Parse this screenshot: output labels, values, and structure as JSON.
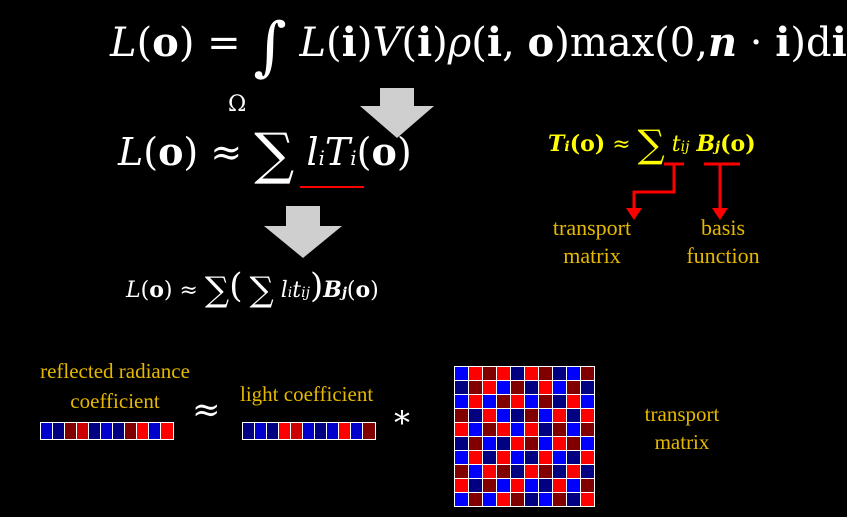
{
  "equations": {
    "main": "L(o) = ∫ L(i)V(i)ρ(i, o)max(0,n · i)di",
    "omega": "Ω",
    "approx1": "L(o) ≈ ∑ lᵢTᵢ(o)",
    "approx2": "L(o) ≈ ∑ ( ∑ lᵢtᵢⱼ ) Bⱼ(o)",
    "transport_eq": "Tᵢ(o) ≈ ∑ tᵢⱼ Bⱼ(o)"
  },
  "labels": {
    "transport_matrix_top": "transport matrix",
    "basis_function": "basis function",
    "reflected_radiance": "reflected radiance coefficient",
    "light_coefficient": "light coefficient",
    "transport_matrix_bottom": "transport matrix",
    "approx_symbol": "≈",
    "mult_symbol": "*"
  },
  "colors": {
    "background": "#000000",
    "text": "#ffffff",
    "gold": "#e6b800",
    "yellow": "#ffff00",
    "red": "#ff0000",
    "blue": "#0000ff",
    "dark_blue": "#000080",
    "dark_red": "#800000"
  },
  "strips": {
    "reflected": [
      "#0000cc",
      "#000080",
      "#800000",
      "#cc0000",
      "#000080",
      "#0000cc",
      "#000080",
      "#800000",
      "#ff0000",
      "#0000cc",
      "#ff0000"
    ],
    "light": [
      "#000080",
      "#0000cc",
      "#000080",
      "#ff0000",
      "#cc0000",
      "#0000cc",
      "#000080",
      "#0000cc",
      "#ff0000",
      "#0000cc",
      "#800000"
    ]
  },
  "matrix": [
    [
      "#0000ff",
      "#ff0000",
      "#800000",
      "#ff0000",
      "#000080",
      "#ff0000",
      "#800000",
      "#000080",
      "#0000ff",
      "#800000"
    ],
    [
      "#000080",
      "#800000",
      "#ff0000",
      "#0000ff",
      "#800000",
      "#000080",
      "#ff0000",
      "#0000ff",
      "#800000",
      "#000080"
    ],
    [
      "#0000ff",
      "#ff0000",
      "#0000ff",
      "#800000",
      "#ff0000",
      "#0000ff",
      "#800000",
      "#000080",
      "#ff0000",
      "#0000ff"
    ],
    [
      "#800000",
      "#000080",
      "#ff0000",
      "#0000ff",
      "#000080",
      "#800000",
      "#0000ff",
      "#ff0000",
      "#000080",
      "#ff0000"
    ],
    [
      "#ff0000",
      "#0000ff",
      "#800000",
      "#ff0000",
      "#0000ff",
      "#ff0000",
      "#000080",
      "#800000",
      "#0000ff",
      "#800000"
    ],
    [
      "#000080",
      "#800000",
      "#0000ff",
      "#000080",
      "#ff0000",
      "#800000",
      "#0000ff",
      "#ff0000",
      "#800000",
      "#0000ff"
    ],
    [
      "#0000ff",
      "#ff0000",
      "#000080",
      "#ff0000",
      "#0000ff",
      "#000080",
      "#ff0000",
      "#0000ff",
      "#000080",
      "#ff0000"
    ],
    [
      "#800000",
      "#0000ff",
      "#ff0000",
      "#800000",
      "#000080",
      "#ff0000",
      "#800000",
      "#000080",
      "#ff0000",
      "#000080"
    ],
    [
      "#ff0000",
      "#000080",
      "#800000",
      "#0000ff",
      "#ff0000",
      "#0000ff",
      "#000080",
      "#ff0000",
      "#0000ff",
      "#800000"
    ],
    [
      "#0000ff",
      "#800000",
      "#0000ff",
      "#ff0000",
      "#800000",
      "#000080",
      "#0000ff",
      "#800000",
      "#000080",
      "#ff0000"
    ]
  ]
}
